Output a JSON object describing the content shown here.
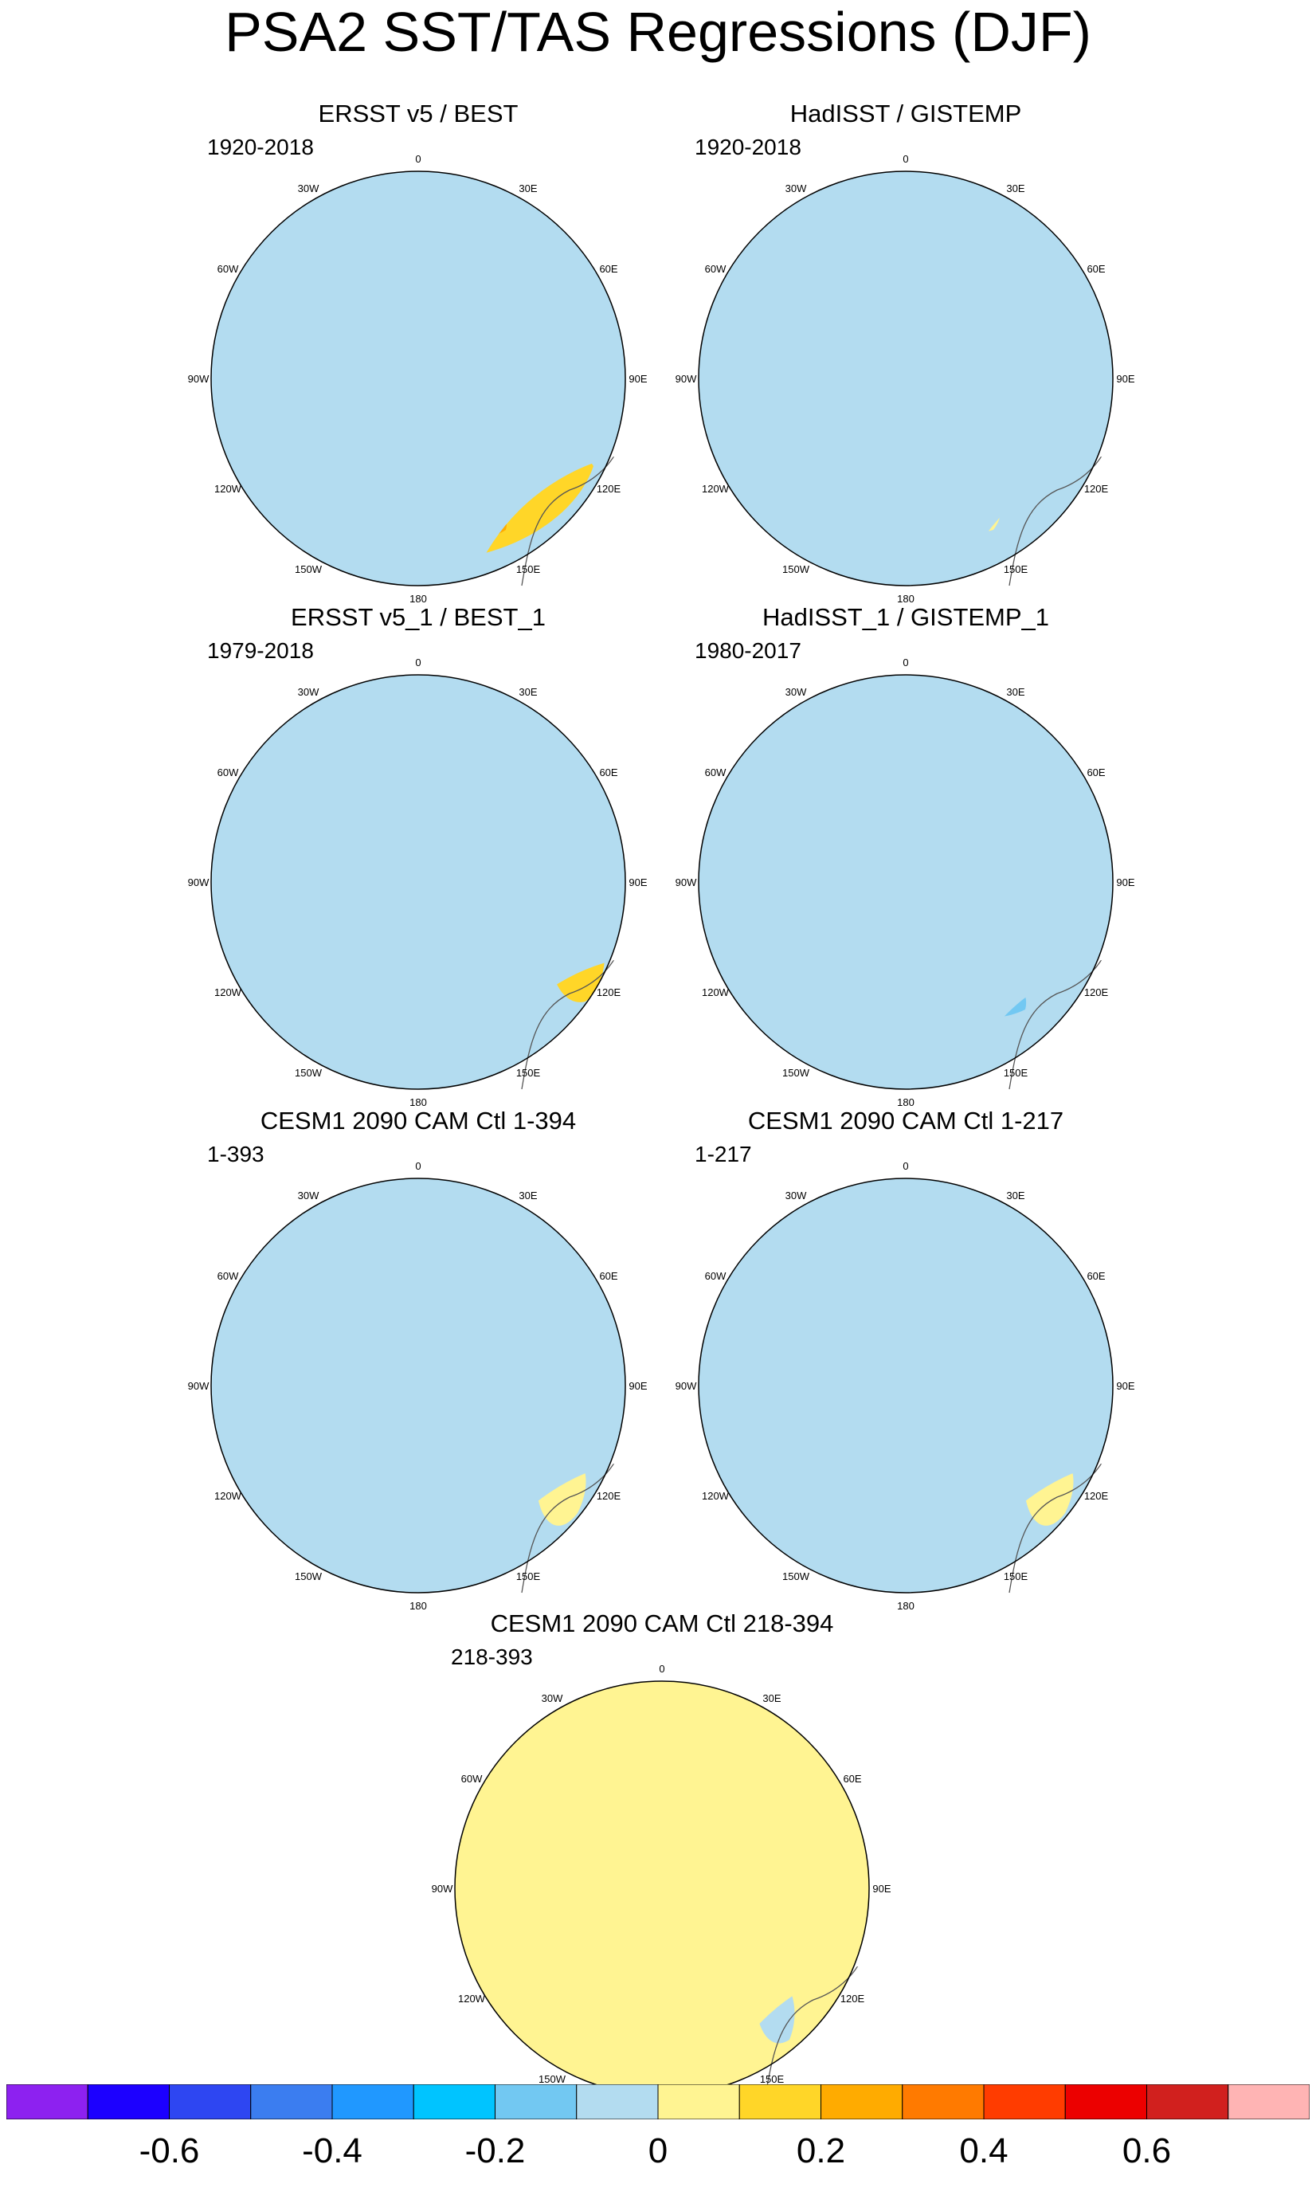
{
  "title": "PSA2 SST/TAS Regressions (DJF)",
  "lon_labels": [
    "0",
    "30E",
    "60E",
    "90E",
    "120E",
    "150E",
    "180",
    "150W",
    "120W",
    "90W",
    "60W",
    "30W"
  ],
  "panels": [
    {
      "title": "ERSST v5 / BEST",
      "period": "1920-2018",
      "background": "#b3dcf0",
      "accent": "#fff492",
      "pattern": "arc"
    },
    {
      "title": "HadISST / GISTEMP",
      "period": "1920-2018",
      "background": "#b3dcf0",
      "accent": "#fff492",
      "pattern": "patchy"
    },
    {
      "title": "ERSST v5_1 / BEST_1",
      "period": "1979-2018",
      "background": "#b3dcf0",
      "accent": "#fff492",
      "pattern": "wave"
    },
    {
      "title": "HadISST_1 / GISTEMP_1",
      "period": "1980-2017",
      "background": "#b3dcf0",
      "accent": "#fff492",
      "pattern": "patchy2"
    },
    {
      "title": "CESM1 2090 CAM Ctl 1-394",
      "period": "1-393",
      "background": "#b3dcf0",
      "accent": "#fff492",
      "pattern": "flat"
    },
    {
      "title": "CESM1 2090 CAM Ctl 1-217",
      "period": "1-217",
      "background": "#b3dcf0",
      "accent": "#fff492",
      "pattern": "flat"
    },
    {
      "title": "CESM1 2090 CAM Ctl 218-394",
      "period": "218-393",
      "background": "#fff492",
      "accent": "#b3dcf0",
      "pattern": "flatpos"
    }
  ],
  "colorbar": {
    "colors": [
      "#8d21f0",
      "#1c00ff",
      "#2e46f2",
      "#3b7df0",
      "#2098ff",
      "#00c4ff",
      "#72c8f2",
      "#b3dcf0",
      "#fff492",
      "#ffd628",
      "#ffab00",
      "#ff7a00",
      "#ff3c00",
      "#ec0000",
      "#d1201e",
      "#ffb4b4"
    ],
    "labels": [
      "-0.6",
      "-0.4",
      "-0.2",
      "0",
      "0.2",
      "0.4",
      "0.6"
    ]
  }
}
